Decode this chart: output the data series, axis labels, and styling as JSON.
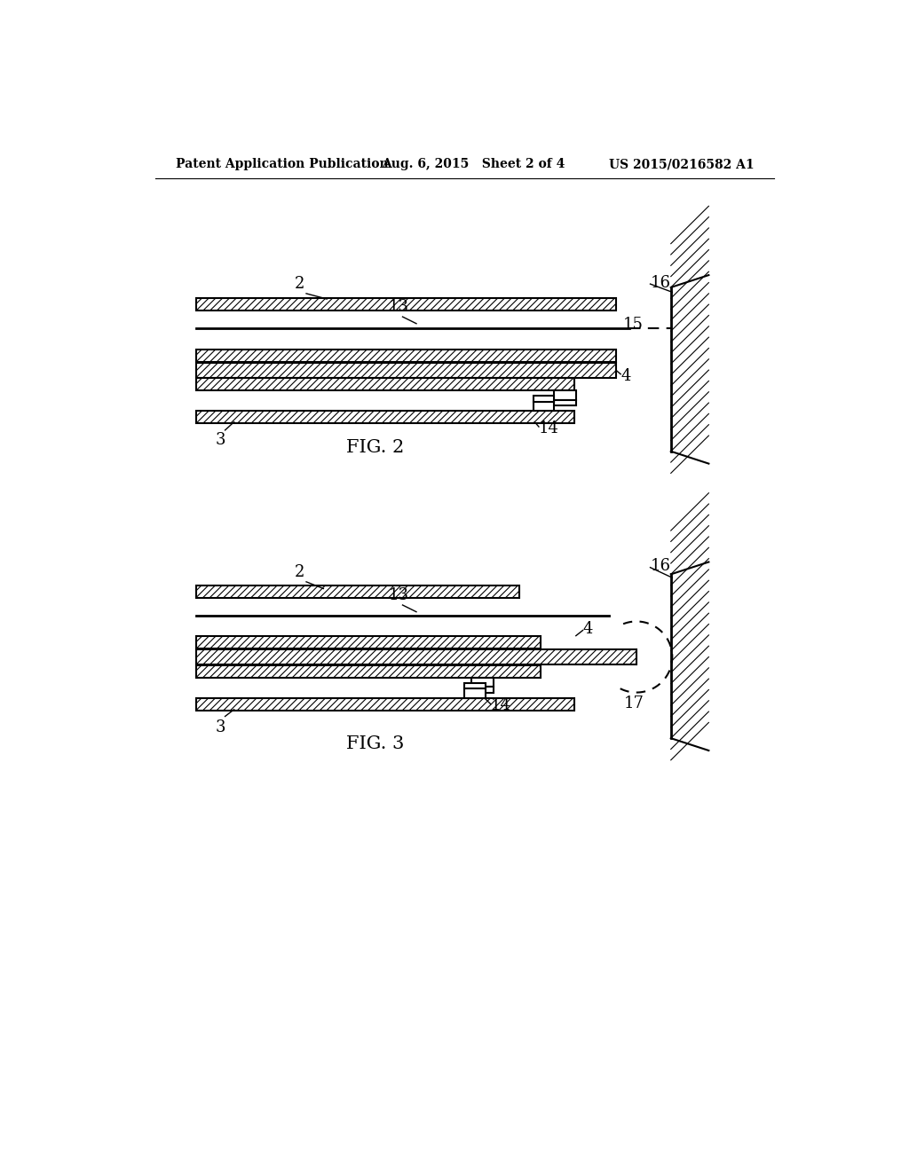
{
  "bg_color": "#ffffff",
  "header_left": "Patent Application Publication",
  "header_mid": "Aug. 6, 2015   Sheet 2 of 4",
  "header_right": "US 2015/0216582 A1",
  "fig2_label": "FIG. 2",
  "fig3_label": "FIG. 3",
  "line_color": "#000000"
}
